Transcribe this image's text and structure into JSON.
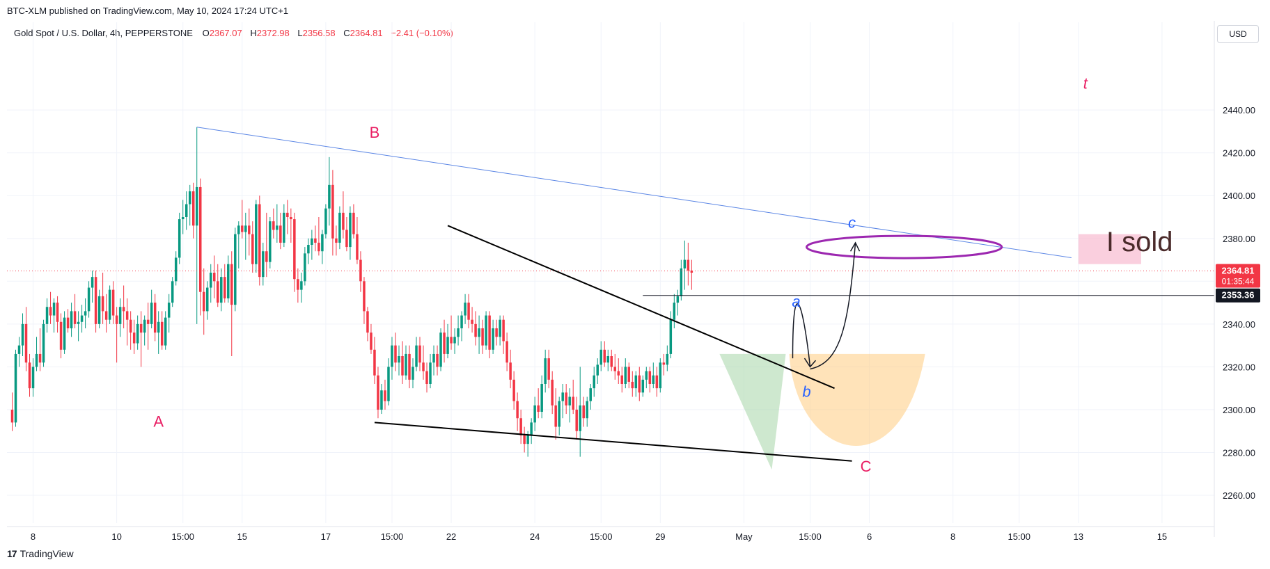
{
  "header": {
    "published": "BTC-XLM published on TradingView.com, May 10, 2024 17:24 UTC+1"
  },
  "legend": {
    "symbol": "Gold Spot / U.S. Dollar, 4h, PEPPERSTONE",
    "o_label": "O",
    "o_value": "2367.07",
    "h_label": "H",
    "h_value": "2372.98",
    "l_label": "L",
    "l_value": "2356.58",
    "c_label": "C",
    "c_value": "2364.81",
    "change": "−2.41 (−0.10%)"
  },
  "currency": "USD",
  "footer": {
    "logo_text": "TradingView"
  },
  "colors": {
    "up": "#089981",
    "down": "#f23645",
    "grid": "#f0f3fa"
  },
  "chart_data": {
    "type": "candlestick",
    "x_ticks": [
      "8",
      "10",
      "15:00",
      "15",
      "17",
      "15:00",
      "22",
      "24",
      "15:00",
      "29",
      "May",
      "15:00",
      "6",
      "8",
      "15:00",
      "13",
      "15"
    ],
    "x_tick_index": [
      6,
      30,
      49,
      66,
      90,
      109,
      126,
      150,
      169,
      186,
      210,
      229,
      246,
      270,
      289,
      306,
      330
    ],
    "y_ticks": [
      2260,
      2280,
      2300,
      2320,
      2340,
      2360,
      2380,
      2400,
      2420,
      2440
    ],
    "ylim": [
      2247,
      2468
    ],
    "xlim": [
      -1.5,
      345
    ],
    "price_labels": [
      {
        "value": 2364.81,
        "text": "2364.81",
        "sub": "01:35:44",
        "color": "#f23645"
      },
      {
        "value": 2353.36,
        "text": "2353.36",
        "color": "#131722"
      }
    ],
    "candles": [
      [
        2300,
        2308,
        2290,
        2294
      ],
      [
        2294,
        2328,
        2292,
        2326
      ],
      [
        2326,
        2334,
        2320,
        2330
      ],
      [
        2330,
        2345,
        2325,
        2340
      ],
      [
        2340,
        2348,
        2318,
        2322
      ],
      [
        2322,
        2326,
        2306,
        2310
      ],
      [
        2310,
        2324,
        2306,
        2320
      ],
      [
        2320,
        2334,
        2318,
        2326
      ],
      [
        2326,
        2338,
        2318,
        2322
      ],
      [
        2322,
        2342,
        2320,
        2340
      ],
      [
        2340,
        2352,
        2336,
        2348
      ],
      [
        2348,
        2355,
        2340,
        2344
      ],
      [
        2344,
        2352,
        2336,
        2350
      ],
      [
        2350,
        2353,
        2336,
        2341
      ],
      [
        2341,
        2345,
        2324,
        2328
      ],
      [
        2328,
        2346,
        2326,
        2343
      ],
      [
        2343,
        2347,
        2336,
        2338
      ],
      [
        2338,
        2350,
        2334,
        2346
      ],
      [
        2346,
        2354,
        2338,
        2340
      ],
      [
        2340,
        2346,
        2332,
        2341
      ],
      [
        2341,
        2349,
        2336,
        2344
      ],
      [
        2344,
        2352,
        2338,
        2346
      ],
      [
        2346,
        2360,
        2343,
        2357
      ],
      [
        2357,
        2365,
        2350,
        2362
      ],
      [
        2362,
        2365,
        2336,
        2340
      ],
      [
        2340,
        2356,
        2338,
        2353
      ],
      [
        2353,
        2364,
        2340,
        2346
      ],
      [
        2346,
        2354,
        2336,
        2342
      ],
      [
        2342,
        2358,
        2340,
        2356
      ],
      [
        2356,
        2360,
        2340,
        2344
      ],
      [
        2344,
        2348,
        2322,
        2340
      ],
      [
        2340,
        2352,
        2334,
        2348
      ],
      [
        2348,
        2358,
        2338,
        2346
      ],
      [
        2346,
        2352,
        2330,
        2342
      ],
      [
        2342,
        2346,
        2328,
        2336
      ],
      [
        2336,
        2342,
        2326,
        2331
      ],
      [
        2331,
        2344,
        2328,
        2340
      ],
      [
        2340,
        2346,
        2320,
        2336
      ],
      [
        2336,
        2344,
        2330,
        2342
      ],
      [
        2342,
        2350,
        2328,
        2340
      ],
      [
        2340,
        2356,
        2338,
        2350
      ],
      [
        2350,
        2354,
        2332,
        2336
      ],
      [
        2336,
        2346,
        2326,
        2341
      ],
      [
        2341,
        2346,
        2328,
        2330
      ],
      [
        2330,
        2346,
        2328,
        2343
      ],
      [
        2343,
        2354,
        2336,
        2350
      ],
      [
        2350,
        2362,
        2348,
        2360
      ],
      [
        2360,
        2374,
        2358,
        2371
      ],
      [
        2371,
        2392,
        2368,
        2389
      ],
      [
        2389,
        2398,
        2382,
        2390
      ],
      [
        2390,
        2402,
        2384,
        2396
      ],
      [
        2396,
        2405,
        2386,
        2402
      ],
      [
        2402,
        2406,
        2380,
        2386
      ],
      [
        2386,
        2432,
        2340,
        2404
      ],
      [
        2404,
        2408,
        2344,
        2355
      ],
      [
        2355,
        2366,
        2335,
        2346
      ],
      [
        2346,
        2360,
        2342,
        2357
      ],
      [
        2357,
        2368,
        2350,
        2364
      ],
      [
        2364,
        2372,
        2352,
        2360
      ],
      [
        2360,
        2368,
        2348,
        2350
      ],
      [
        2350,
        2366,
        2346,
        2362
      ],
      [
        2362,
        2368,
        2350,
        2352
      ],
      [
        2352,
        2372,
        2350,
        2368
      ],
      [
        2368,
        2374,
        2325,
        2349
      ],
      [
        2349,
        2385,
        2346,
        2382
      ],
      [
        2382,
        2388,
        2366,
        2386
      ],
      [
        2386,
        2398,
        2380,
        2383
      ],
      [
        2383,
        2392,
        2370,
        2386
      ],
      [
        2386,
        2394,
        2372,
        2382
      ],
      [
        2382,
        2388,
        2364,
        2368
      ],
      [
        2368,
        2398,
        2364,
        2396
      ],
      [
        2396,
        2400,
        2358,
        2362
      ],
      [
        2362,
        2378,
        2358,
        2374
      ],
      [
        2374,
        2392,
        2362,
        2369
      ],
      [
        2369,
        2390,
        2366,
        2388
      ],
      [
        2388,
        2394,
        2380,
        2384
      ],
      [
        2384,
        2396,
        2378,
        2386
      ],
      [
        2386,
        2392,
        2375,
        2378
      ],
      [
        2378,
        2396,
        2376,
        2392
      ],
      [
        2392,
        2398,
        2382,
        2390
      ],
      [
        2390,
        2394,
        2378,
        2389
      ],
      [
        2389,
        2392,
        2355,
        2361
      ],
      [
        2361,
        2366,
        2350,
        2356
      ],
      [
        2356,
        2364,
        2350,
        2360
      ],
      [
        2360,
        2376,
        2358,
        2373
      ],
      [
        2373,
        2380,
        2368,
        2377
      ],
      [
        2377,
        2384,
        2370,
        2380
      ],
      [
        2380,
        2386,
        2374,
        2378
      ],
      [
        2378,
        2390,
        2372,
        2374
      ],
      [
        2374,
        2384,
        2368,
        2382
      ],
      [
        2382,
        2396,
        2380,
        2394
      ],
      [
        2394,
        2418,
        2386,
        2405
      ],
      [
        2405,
        2412,
        2372,
        2380
      ],
      [
        2380,
        2386,
        2372,
        2378
      ],
      [
        2378,
        2395,
        2375,
        2392
      ],
      [
        2392,
        2402,
        2380,
        2384
      ],
      [
        2384,
        2390,
        2374,
        2376
      ],
      [
        2376,
        2395,
        2370,
        2392
      ],
      [
        2392,
        2396,
        2380,
        2382
      ],
      [
        2382,
        2390,
        2368,
        2370
      ],
      [
        2370,
        2374,
        2355,
        2360
      ],
      [
        2360,
        2362,
        2340,
        2346
      ],
      [
        2346,
        2348,
        2332,
        2336
      ],
      [
        2336,
        2340,
        2326,
        2328
      ],
      [
        2328,
        2334,
        2312,
        2316
      ],
      [
        2316,
        2320,
        2296,
        2300
      ],
      [
        2300,
        2312,
        2298,
        2309
      ],
      [
        2309,
        2314,
        2300,
        2304
      ],
      [
        2304,
        2324,
        2302,
        2320
      ],
      [
        2320,
        2334,
        2314,
        2330
      ],
      [
        2330,
        2336,
        2318,
        2322
      ],
      [
        2322,
        2330,
        2316,
        2325
      ],
      [
        2325,
        2332,
        2312,
        2316
      ],
      [
        2316,
        2330,
        2314,
        2326
      ],
      [
        2326,
        2330,
        2310,
        2314
      ],
      [
        2314,
        2324,
        2310,
        2320
      ],
      [
        2320,
        2334,
        2318,
        2330
      ],
      [
        2330,
        2334,
        2318,
        2322
      ],
      [
        2322,
        2330,
        2314,
        2318
      ],
      [
        2318,
        2322,
        2308,
        2312
      ],
      [
        2312,
        2326,
        2310,
        2322
      ],
      [
        2322,
        2330,
        2316,
        2326
      ],
      [
        2326,
        2330,
        2316,
        2320
      ],
      [
        2320,
        2338,
        2318,
        2336
      ],
      [
        2336,
        2342,
        2322,
        2326
      ],
      [
        2326,
        2340,
        2324,
        2334
      ],
      [
        2334,
        2344,
        2328,
        2331
      ],
      [
        2331,
        2338,
        2326,
        2334
      ],
      [
        2334,
        2344,
        2330,
        2338
      ],
      [
        2338,
        2346,
        2332,
        2344
      ],
      [
        2344,
        2354,
        2340,
        2350
      ],
      [
        2350,
        2354,
        2338,
        2342
      ],
      [
        2342,
        2348,
        2336,
        2340
      ],
      [
        2340,
        2346,
        2330,
        2334
      ],
      [
        2334,
        2344,
        2326,
        2338
      ],
      [
        2338,
        2342,
        2326,
        2330
      ],
      [
        2330,
        2346,
        2328,
        2344
      ],
      [
        2344,
        2346,
        2324,
        2328
      ],
      [
        2328,
        2342,
        2326,
        2338
      ],
      [
        2338,
        2342,
        2330,
        2334
      ],
      [
        2334,
        2344,
        2330,
        2342
      ],
      [
        2342,
        2344,
        2326,
        2332
      ],
      [
        2332,
        2336,
        2318,
        2322
      ],
      [
        2322,
        2328,
        2310,
        2314
      ],
      [
        2314,
        2318,
        2300,
        2304
      ],
      [
        2304,
        2308,
        2290,
        2296
      ],
      [
        2296,
        2300,
        2284,
        2288
      ],
      [
        2288,
        2292,
        2280,
        2284
      ],
      [
        2284,
        2290,
        2278,
        2288
      ],
      [
        2288,
        2296,
        2284,
        2294
      ],
      [
        2294,
        2306,
        2290,
        2302
      ],
      [
        2302,
        2310,
        2296,
        2299
      ],
      [
        2299,
        2316,
        2296,
        2312
      ],
      [
        2312,
        2328,
        2308,
        2324
      ],
      [
        2324,
        2328,
        2310,
        2314
      ],
      [
        2314,
        2318,
        2298,
        2302
      ],
      [
        2302,
        2310,
        2286,
        2292
      ],
      [
        2292,
        2306,
        2288,
        2304
      ],
      [
        2304,
        2312,
        2296,
        2308
      ],
      [
        2308,
        2312,
        2298,
        2302
      ],
      [
        2302,
        2310,
        2294,
        2306
      ],
      [
        2306,
        2314,
        2298,
        2300
      ],
      [
        2300,
        2306,
        2286,
        2290
      ],
      [
        2290,
        2320,
        2278,
        2302
      ],
      [
        2302,
        2306,
        2292,
        2296
      ],
      [
        2296,
        2306,
        2292,
        2304
      ],
      [
        2304,
        2312,
        2300,
        2310
      ],
      [
        2310,
        2320,
        2306,
        2316
      ],
      [
        2316,
        2324,
        2312,
        2321
      ],
      [
        2321,
        2332,
        2318,
        2328
      ],
      [
        2328,
        2332,
        2320,
        2322
      ],
      [
        2322,
        2328,
        2318,
        2325
      ],
      [
        2325,
        2328,
        2318,
        2320
      ],
      [
        2320,
        2326,
        2314,
        2318
      ],
      [
        2318,
        2324,
        2312,
        2316
      ],
      [
        2316,
        2320,
        2308,
        2312
      ],
      [
        2312,
        2324,
        2310,
        2320
      ],
      [
        2320,
        2322,
        2310,
        2313
      ],
      [
        2313,
        2318,
        2306,
        2310
      ],
      [
        2310,
        2318,
        2306,
        2316
      ],
      [
        2316,
        2320,
        2304,
        2308
      ],
      [
        2308,
        2316,
        2306,
        2314
      ],
      [
        2314,
        2320,
        2310,
        2318
      ],
      [
        2318,
        2320,
        2308,
        2312
      ],
      [
        2312,
        2322,
        2310,
        2316
      ],
      [
        2316,
        2320,
        2306,
        2310
      ],
      [
        2310,
        2324,
        2308,
        2322
      ],
      [
        2322,
        2326,
        2316,
        2321
      ],
      [
        2321,
        2330,
        2318,
        2326
      ],
      [
        2326,
        2346,
        2324,
        2342
      ],
      [
        2342,
        2354,
        2338,
        2350
      ],
      [
        2350,
        2356,
        2344,
        2353
      ],
      [
        2353,
        2370,
        2351,
        2366
      ],
      [
        2366,
        2379,
        2356,
        2370
      ],
      [
        2370,
        2378,
        2358,
        2365
      ],
      [
        2365,
        2370,
        2356,
        2364
      ]
    ],
    "candle_index_start": 0,
    "candle_step": 1,
    "horizontal_line": 2353.36,
    "current_price": 2364.81,
    "annotations": [
      {
        "text": "A",
        "i": 42,
        "y": 2292
      },
      {
        "text": "B",
        "i": 104,
        "y": 2427
      },
      {
        "text": "C",
        "i": 245,
        "y": 2271
      },
      {
        "text": "a",
        "i": 225,
        "y": 2348
      },
      {
        "text": "b",
        "i": 228,
        "y": 2306
      },
      {
        "text": "c",
        "i": 241,
        "y": 2385
      },
      {
        "text": "t",
        "i": 308,
        "y": 2450
      },
      {
        "text": "I sold",
        "i": 314,
        "y": 2374
      }
    ],
    "trendlines": [
      {
        "name": "blue-upper",
        "i1": 53,
        "y1": 2432,
        "i2": 304,
        "y2": 2371,
        "color": "#5b86e5"
      },
      {
        "name": "black-upper",
        "i1": 125,
        "y1": 2386,
        "i2": 236,
        "y2": 2310,
        "color": "#000000"
      },
      {
        "name": "black-lower",
        "i1": 104,
        "y1": 2294,
        "i2": 241,
        "y2": 2276,
        "color": "#000000"
      }
    ]
  }
}
